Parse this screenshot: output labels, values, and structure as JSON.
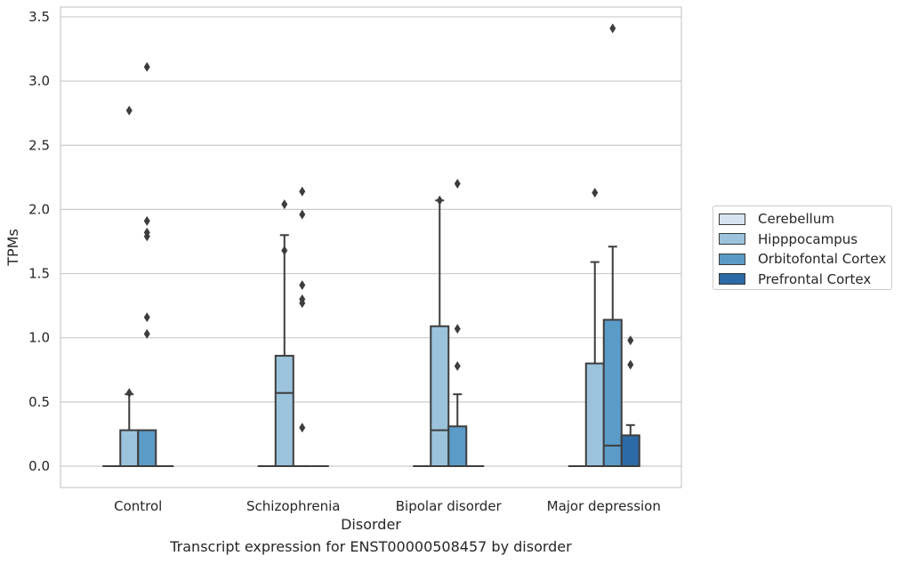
{
  "chart_data": {
    "type": "box",
    "title": "Transcript expression for ENST00000508457 by disorder",
    "xlabel": "Disorder",
    "ylabel": "TPMs",
    "ylim": [
      -0.16,
      3.58
    ],
    "yticks": [
      "0.0",
      "0.5",
      "1.0",
      "1.5",
      "2.0",
      "2.5",
      "3.0",
      "3.5"
    ],
    "grid": true,
    "legend_position": "right",
    "categories": [
      "Control",
      "Schizophrenia",
      "Bipolar disorder",
      "Major depression"
    ],
    "series": [
      {
        "name": "Cerebellum",
        "color": "#d6e4f1",
        "boxes": [
          {
            "min": 0,
            "q1": 0,
            "median": 0,
            "q3": 0,
            "max": 0,
            "outliers": []
          },
          {
            "min": 0,
            "q1": 0,
            "median": 0,
            "q3": 0,
            "max": 0,
            "outliers": []
          },
          {
            "min": 0,
            "q1": 0,
            "median": 0,
            "q3": 0,
            "max": 0,
            "outliers": []
          },
          {
            "min": 0,
            "q1": 0,
            "median": 0,
            "q3": 0,
            "max": 0,
            "outliers": []
          }
        ]
      },
      {
        "name": "Hipppocampus",
        "color": "#9bc3dc",
        "boxes": [
          {
            "min": 0,
            "q1": 0,
            "median": 0,
            "q3": 0.28,
            "max": 0.56,
            "outliers": [
              0.57,
              2.77
            ]
          },
          {
            "min": 0,
            "q1": 0,
            "median": 0.57,
            "q3": 0.86,
            "max": 1.8,
            "outliers": [
              1.68,
              2.04
            ]
          },
          {
            "min": 0,
            "q1": 0,
            "median": 0.28,
            "q3": 1.09,
            "max": 2.07,
            "outliers": [
              2.07
            ]
          },
          {
            "min": 0,
            "q1": 0,
            "median": 0,
            "q3": 0.8,
            "max": 1.59,
            "outliers": [
              2.13
            ]
          }
        ]
      },
      {
        "name": "Orbitofontal Cortex",
        "color": "#5b9bc8",
        "boxes": [
          {
            "min": 0,
            "q1": 0,
            "median": 0,
            "q3": 0.28,
            "max": 0.28,
            "outliers": [
              1.03,
              1.16,
              1.82,
              1.91,
              1.79,
              3.11
            ]
          },
          {
            "min": 0,
            "q1": 0,
            "median": 0,
            "q3": 0,
            "max": 0,
            "outliers": [
              0.3,
              1.27,
              1.3,
              1.41,
              1.96,
              2.14
            ]
          },
          {
            "min": 0,
            "q1": 0,
            "median": 0,
            "q3": 0.31,
            "max": 0.56,
            "outliers": [
              0.78,
              1.07,
              2.2
            ]
          },
          {
            "min": 0,
            "q1": 0,
            "median": 0.16,
            "q3": 1.14,
            "max": 1.71,
            "outliers": [
              3.41
            ]
          }
        ]
      },
      {
        "name": "Prefrontal Cortex",
        "color": "#2c6aa6",
        "boxes": [
          {
            "min": 0,
            "q1": 0,
            "median": 0,
            "q3": 0,
            "max": 0,
            "outliers": []
          },
          {
            "min": 0,
            "q1": 0,
            "median": 0,
            "q3": 0,
            "max": 0,
            "outliers": []
          },
          {
            "min": 0,
            "q1": 0,
            "median": 0,
            "q3": 0,
            "max": 0,
            "outliers": []
          },
          {
            "min": 0,
            "q1": 0,
            "median": 0,
            "q3": 0.24,
            "max": 0.32,
            "outliers": [
              0.79,
              0.98
            ]
          }
        ]
      }
    ]
  }
}
